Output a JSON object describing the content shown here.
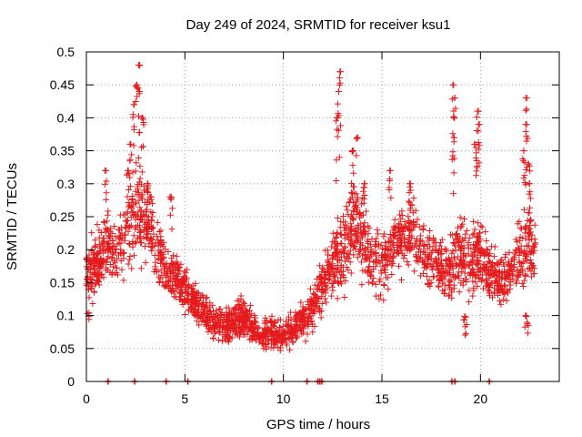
{
  "chart_data": {
    "type": "scatter",
    "title": "Day 249 of 2024, SRMTID for receiver ksu1",
    "xlabel": "GPS time / hours",
    "ylabel": "SRMTID / TECUs",
    "xlim": [
      0,
      24
    ],
    "ylim": [
      0,
      0.5
    ],
    "x_ticks": [
      0,
      5,
      10,
      15,
      20
    ],
    "x_tick_labels": [
      "0",
      "5",
      "10",
      "15",
      "20"
    ],
    "y_ticks": [
      0,
      0.05,
      0.1,
      0.15,
      0.2,
      0.25,
      0.3,
      0.35,
      0.4,
      0.45,
      0.5
    ],
    "y_tick_labels": [
      "0",
      "0.05",
      "0.1",
      "0.15",
      "0.2",
      "0.25",
      "0.3",
      "0.35",
      "0.4",
      "0.45",
      "0.5"
    ],
    "grid": true,
    "marker": "+",
    "series_color": "#e41a1c",
    "series": [
      {
        "name": "SRMTID",
        "envelope_hours": [
          0,
          0.5,
          1,
          1.5,
          2,
          2.5,
          3,
          3.5,
          4,
          4.5,
          5,
          5.5,
          6,
          6.5,
          7,
          7.5,
          8,
          8.5,
          9,
          9.5,
          10,
          10.5,
          11,
          11.5,
          12,
          12.5,
          13,
          13.5,
          14,
          14.5,
          15,
          15.5,
          16,
          16.5,
          17,
          17.5,
          18,
          18.5,
          19,
          19.5,
          20,
          20.5,
          21,
          21.5,
          22,
          22.5,
          23
        ],
        "envelope_center": [
          0.16,
          0.18,
          0.2,
          0.19,
          0.22,
          0.26,
          0.25,
          0.2,
          0.17,
          0.16,
          0.14,
          0.12,
          0.1,
          0.09,
          0.085,
          0.09,
          0.095,
          0.08,
          0.07,
          0.075,
          0.07,
          0.08,
          0.09,
          0.11,
          0.15,
          0.17,
          0.2,
          0.24,
          0.22,
          0.18,
          0.18,
          0.2,
          0.22,
          0.23,
          0.2,
          0.19,
          0.18,
          0.17,
          0.2,
          0.18,
          0.2,
          0.16,
          0.15,
          0.17,
          0.19,
          0.21,
          0.18
        ],
        "envelope_spread": [
          0.04,
          0.05,
          0.05,
          0.05,
          0.06,
          0.08,
          0.07,
          0.05,
          0.04,
          0.04,
          0.035,
          0.03,
          0.03,
          0.025,
          0.025,
          0.03,
          0.03,
          0.025,
          0.025,
          0.025,
          0.025,
          0.025,
          0.03,
          0.03,
          0.04,
          0.05,
          0.06,
          0.07,
          0.06,
          0.05,
          0.05,
          0.05,
          0.05,
          0.05,
          0.05,
          0.05,
          0.05,
          0.05,
          0.06,
          0.05,
          0.05,
          0.04,
          0.04,
          0.04,
          0.05,
          0.06,
          0.04
        ],
        "spikes": [
          {
            "x": 2.1,
            "y": 0.32
          },
          {
            "x": 2.25,
            "y": 0.36
          },
          {
            "x": 2.4,
            "y": 0.42
          },
          {
            "x": 2.55,
            "y": 0.45
          },
          {
            "x": 2.65,
            "y": 0.48
          },
          {
            "x": 2.7,
            "y": 0.44
          },
          {
            "x": 2.85,
            "y": 0.4
          },
          {
            "x": 3.1,
            "y": 0.3
          },
          {
            "x": 3.25,
            "y": 0.28
          },
          {
            "x": 4.3,
            "y": 0.28
          },
          {
            "x": 1.0,
            "y": 0.32
          },
          {
            "x": 12.9,
            "y": 0.47
          },
          {
            "x": 12.8,
            "y": 0.44
          },
          {
            "x": 12.7,
            "y": 0.4
          },
          {
            "x": 13.5,
            "y": 0.35
          },
          {
            "x": 13.75,
            "y": 0.37
          },
          {
            "x": 14.1,
            "y": 0.3
          },
          {
            "x": 15.4,
            "y": 0.32
          },
          {
            "x": 16.4,
            "y": 0.3
          },
          {
            "x": 18.6,
            "y": 0.45
          },
          {
            "x": 18.7,
            "y": 0.43
          },
          {
            "x": 18.65,
            "y": 0.37
          },
          {
            "x": 19.85,
            "y": 0.41
          },
          {
            "x": 19.9,
            "y": 0.39
          },
          {
            "x": 19.75,
            "y": 0.36
          },
          {
            "x": 22.3,
            "y": 0.43
          },
          {
            "x": 22.35,
            "y": 0.39
          },
          {
            "x": 22.45,
            "y": 0.33
          },
          {
            "x": 22.5,
            "y": 0.3
          },
          {
            "x": 22.2,
            "y": 0.35
          }
        ],
        "dips": [
          {
            "x": 19.2,
            "y": 0.08
          },
          {
            "x": 19.25,
            "y": 0.07
          },
          {
            "x": 22.3,
            "y": 0.08
          },
          {
            "x": 22.4,
            "y": 0.07
          },
          {
            "x": 0.1,
            "y": 0.09
          }
        ],
        "zero_markers": [
          1.1,
          2.45,
          4.05,
          5.15,
          9.4,
          11.2,
          11.75,
          11.85,
          11.95,
          18.55,
          18.7,
          20.45
        ]
      }
    ]
  }
}
